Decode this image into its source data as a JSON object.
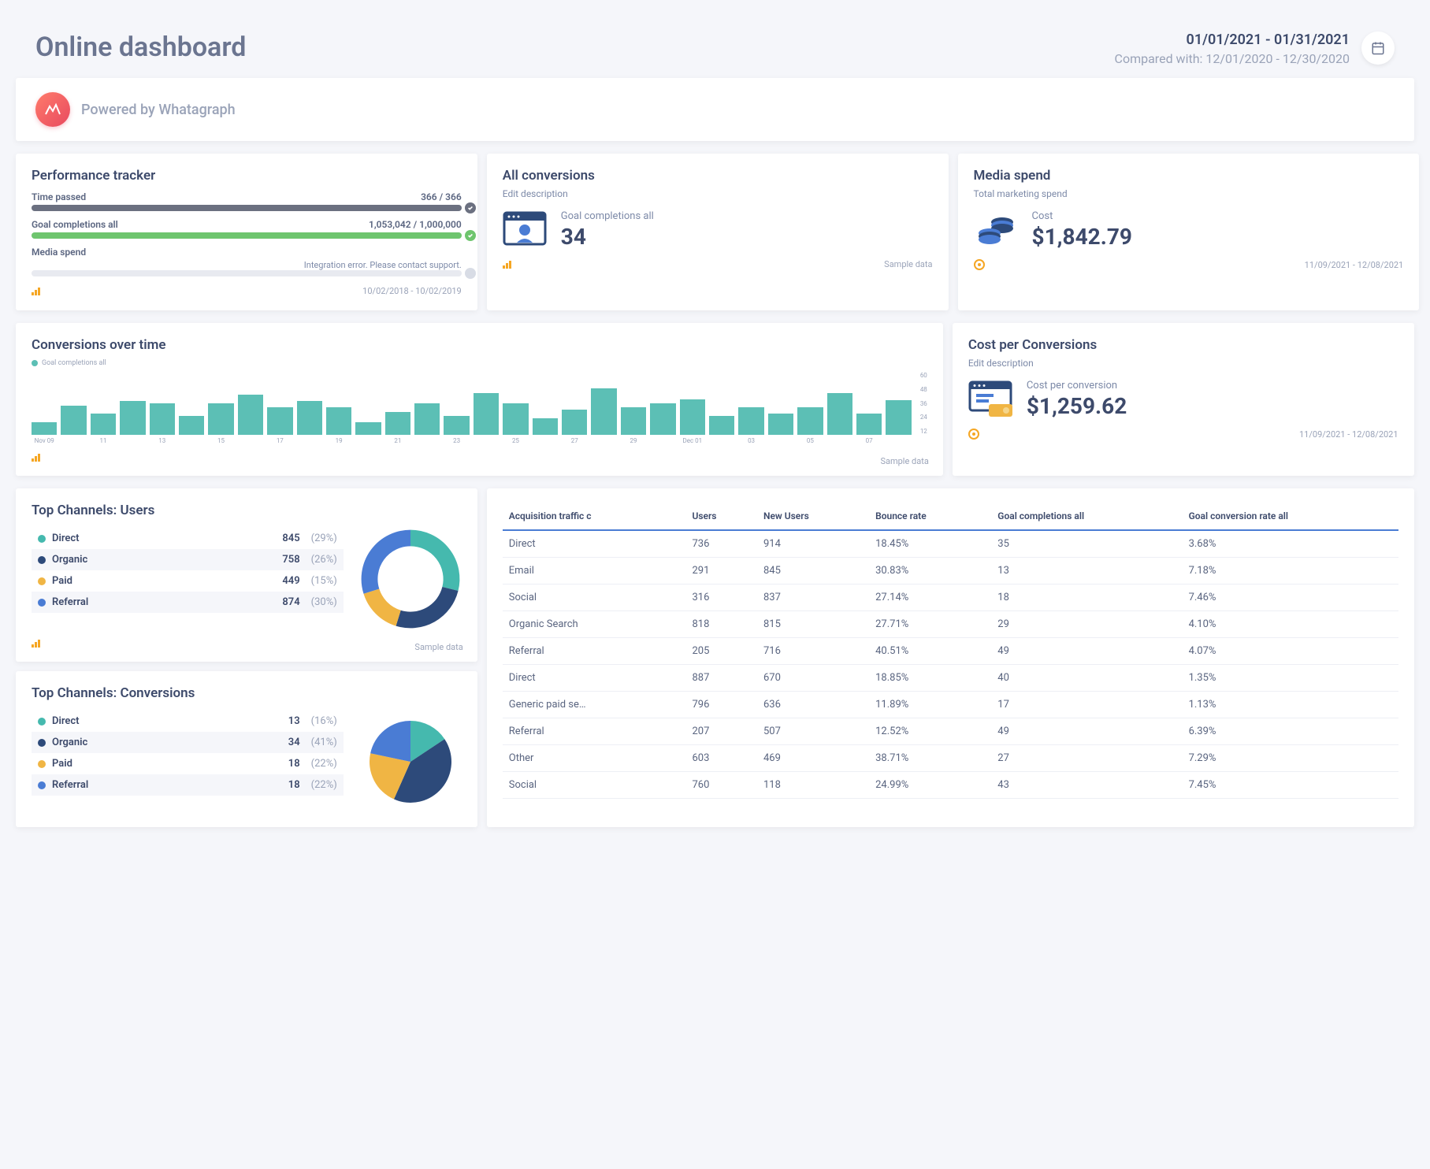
{
  "header": {
    "title": "Online dashboard",
    "date_range": "01/01/2021 - 01/31/2021",
    "compared": "Compared with: 12/01/2020 - 12/30/2020"
  },
  "brand": {
    "text": "Powered by Whatagraph"
  },
  "perf": {
    "title": "Performance tracker",
    "time": {
      "label": "Time passed",
      "value": "366 / 366",
      "pct": 100,
      "color": "#6b7080",
      "check": "#6b7080"
    },
    "goal": {
      "label": "Goal completions all",
      "value": "1,053,042 / 1,000,000",
      "pct": 100,
      "color": "#6ec56e",
      "check": "#6ec56e"
    },
    "media": {
      "label": "Media spend",
      "error": "Integration error. Please contact support."
    },
    "footer_date": "10/02/2018 - 10/02/2019"
  },
  "allconv": {
    "title": "All conversions",
    "sub": "Edit description",
    "label": "Goal completions all",
    "value": "34",
    "footer": "Sample data"
  },
  "mspend": {
    "title": "Media spend",
    "sub": "Total marketing spend",
    "label": "Cost",
    "value": "$1,842.79",
    "footer": "11/09/2021 - 12/08/2021"
  },
  "cot": {
    "title": "Conversions over time",
    "legend": "Goal completions all",
    "legend_color": "#5cbfb5",
    "ymax": 60,
    "yticks": [
      "60",
      "48",
      "36",
      "24",
      "12"
    ],
    "bars": [
      12,
      28,
      20,
      32,
      30,
      18,
      30,
      38,
      26,
      32,
      26,
      12,
      22,
      30,
      18,
      40,
      30,
      16,
      24,
      44,
      26,
      30,
      34,
      18,
      26,
      20,
      26,
      40,
      20,
      33
    ],
    "labels": [
      "Nov 09",
      "",
      "11",
      "",
      "13",
      "",
      "15",
      "",
      "17",
      "",
      "19",
      "",
      "21",
      "",
      "23",
      "",
      "25",
      "",
      "27",
      "",
      "29",
      "",
      "Dec 01",
      "",
      "03",
      "",
      "05",
      "",
      "07",
      ""
    ],
    "footer": "Sample data"
  },
  "cpc": {
    "title": "Cost per Conversions",
    "sub": "Edit description",
    "label": "Cost per conversion",
    "value": "$1,259.62",
    "footer": "11/09/2021 - 12/08/2021"
  },
  "tc_users": {
    "title": "Top Channels: Users",
    "items": [
      {
        "name": "Direct",
        "count": "845",
        "pct": "(29%)",
        "color": "#45b9ae"
      },
      {
        "name": "Organic",
        "count": "758",
        "pct": "(26%)",
        "color": "#2d4a7a"
      },
      {
        "name": "Paid",
        "count": "449",
        "pct": "(15%)",
        "color": "#f0b544"
      },
      {
        "name": "Referral",
        "count": "874",
        "pct": "(30%)",
        "color": "#4a7cd4"
      }
    ],
    "donut_type": "ring",
    "footer": "Sample data"
  },
  "tc_conv": {
    "title": "Top Channels: Conversions",
    "items": [
      {
        "name": "Direct",
        "count": "13",
        "pct": "(16%)",
        "color": "#45b9ae"
      },
      {
        "name": "Organic",
        "count": "34",
        "pct": "(41%)",
        "color": "#2d4a7a"
      },
      {
        "name": "Paid",
        "count": "18",
        "pct": "(22%)",
        "color": "#f0b544"
      },
      {
        "name": "Referral",
        "count": "18",
        "pct": "(22%)",
        "color": "#4a7cd4"
      }
    ],
    "donut_type": "pie"
  },
  "table": {
    "columns": [
      "Acquisition traffic c",
      "Users",
      "New Users",
      "Bounce rate",
      "Goal completions all",
      "Goal conversion rate all"
    ],
    "rows": [
      [
        "Direct",
        "736",
        "914",
        "18.45%",
        "35",
        "3.68%"
      ],
      [
        "Email",
        "291",
        "845",
        "30.83%",
        "13",
        "7.18%"
      ],
      [
        "Social",
        "316",
        "837",
        "27.14%",
        "18",
        "7.46%"
      ],
      [
        "Organic Search",
        "818",
        "815",
        "27.71%",
        "29",
        "4.10%"
      ],
      [
        "Referral",
        "205",
        "716",
        "40.51%",
        "49",
        "4.07%"
      ],
      [
        "Direct",
        "887",
        "670",
        "18.85%",
        "40",
        "1.35%"
      ],
      [
        "Generic paid se…",
        "796",
        "636",
        "11.89%",
        "17",
        "1.13%"
      ],
      [
        "Referral",
        "207",
        "507",
        "12.52%",
        "49",
        "6.39%"
      ],
      [
        "Other",
        "603",
        "469",
        "38.71%",
        "27",
        "7.29%"
      ],
      [
        "Social",
        "760",
        "118",
        "24.99%",
        "43",
        "7.45%"
      ]
    ]
  }
}
